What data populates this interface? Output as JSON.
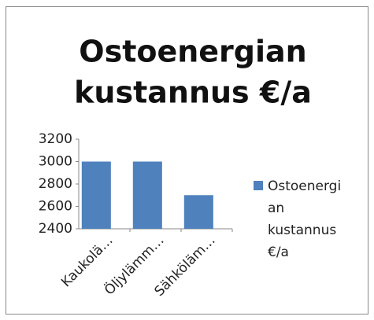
{
  "chart_data": {
    "type": "bar",
    "title_lines": [
      "Ostoenergian",
      "kustannus €/a"
    ],
    "categories": [
      "Kaukolä…",
      "Öljylämm…",
      "Sähköläm…"
    ],
    "series": [
      {
        "name": "Ostoenergian kustannus €/a",
        "color": "#4f81bd",
        "values": [
          3000,
          3000,
          2700
        ]
      }
    ],
    "ylim": [
      2400,
      3200
    ],
    "yticks": [
      2400,
      2600,
      2800,
      3000,
      3200
    ],
    "grid": false,
    "legend": "right"
  }
}
